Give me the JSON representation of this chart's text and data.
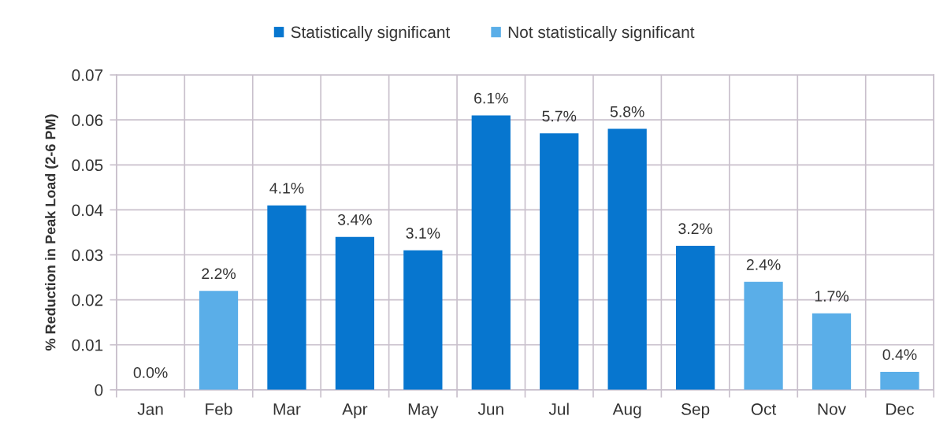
{
  "chart_data": {
    "type": "bar",
    "categories": [
      "Jan",
      "Feb",
      "Mar",
      "Apr",
      "May",
      "Jun",
      "Jul",
      "Aug",
      "Sep",
      "Oct",
      "Nov",
      "Dec"
    ],
    "series": [
      {
        "name": "Statistically significant",
        "color": "#0776cf",
        "values": [
          null,
          null,
          0.041,
          0.034,
          0.031,
          0.061,
          0.057,
          0.058,
          0.032,
          null,
          null,
          null
        ],
        "value_labels": [
          null,
          null,
          "4.1%",
          "3.4%",
          "3.1%",
          "6.1%",
          "5.7%",
          "5.8%",
          "3.2%",
          null,
          null,
          null
        ]
      },
      {
        "name": "Not statistically significant",
        "color": "#5aaee8",
        "values": [
          0.0,
          0.022,
          null,
          null,
          null,
          null,
          null,
          null,
          null,
          0.024,
          0.017,
          0.004
        ],
        "value_labels": [
          "0.0%",
          "2.2%",
          null,
          null,
          null,
          null,
          null,
          null,
          null,
          "2.4%",
          "1.7%",
          "0.4%"
        ]
      }
    ],
    "ylabel": "% Reduction in Peak Load (2-6 PM)",
    "ylim": [
      0,
      0.07
    ],
    "yticks": [
      0,
      0.01,
      0.02,
      0.03,
      0.04,
      0.05,
      0.06,
      0.07
    ],
    "grid": true,
    "legend": "top"
  }
}
